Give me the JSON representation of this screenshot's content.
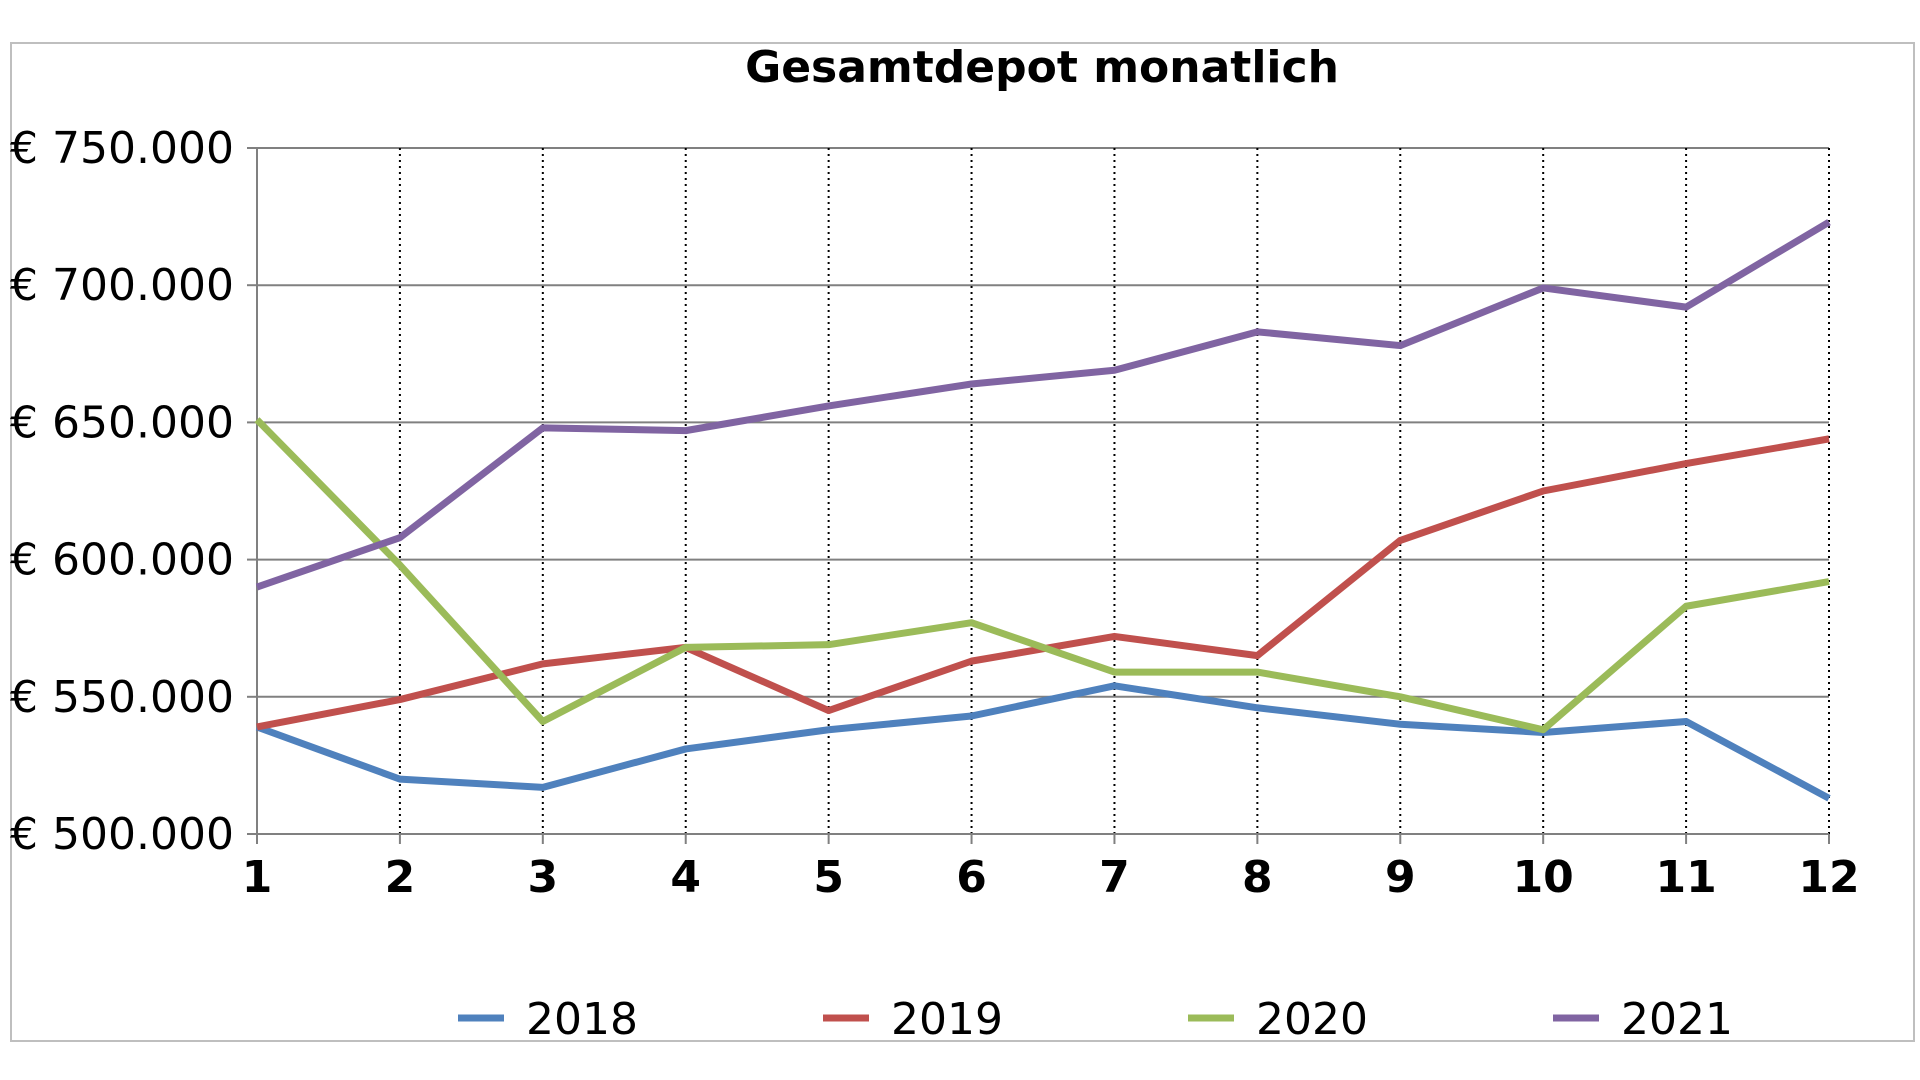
{
  "chart_data": {
    "type": "line",
    "title": "Gesamtdepot monatlich",
    "xlabel": "",
    "ylabel": "",
    "x": [
      1,
      2,
      3,
      4,
      5,
      6,
      7,
      8,
      9,
      10,
      11,
      12
    ],
    "ylim": [
      500000,
      750000
    ],
    "yticks": [
      500000,
      550000,
      600000,
      650000,
      700000,
      750000
    ],
    "ytick_labels": [
      "€ 500.000",
      "€ 550.000",
      "€ 600.000",
      "€ 650.000",
      "€ 700.000",
      "€ 750.000"
    ],
    "grid": {
      "horizontal": "solid",
      "vertical": "dotted"
    },
    "legend_position": "bottom",
    "series": [
      {
        "name": "2018",
        "color": "#4f81bd",
        "values": [
          539000,
          520000,
          517000,
          531000,
          538000,
          543000,
          554000,
          546000,
          540000,
          537000,
          541000,
          513000
        ]
      },
      {
        "name": "2019",
        "color": "#c0504d",
        "values": [
          539000,
          549000,
          562000,
          568000,
          545000,
          563000,
          572000,
          565000,
          607000,
          625000,
          635000,
          644000
        ]
      },
      {
        "name": "2020",
        "color": "#9bbb59",
        "values": [
          651000,
          598000,
          541000,
          568000,
          569000,
          577000,
          559000,
          559000,
          550000,
          538000,
          583000,
          592000
        ]
      },
      {
        "name": "2021",
        "color": "#8064a2",
        "values": [
          590000,
          608000,
          648000,
          647000,
          656000,
          664000,
          669000,
          683000,
          678000,
          699000,
          692000,
          723000
        ]
      }
    ]
  }
}
